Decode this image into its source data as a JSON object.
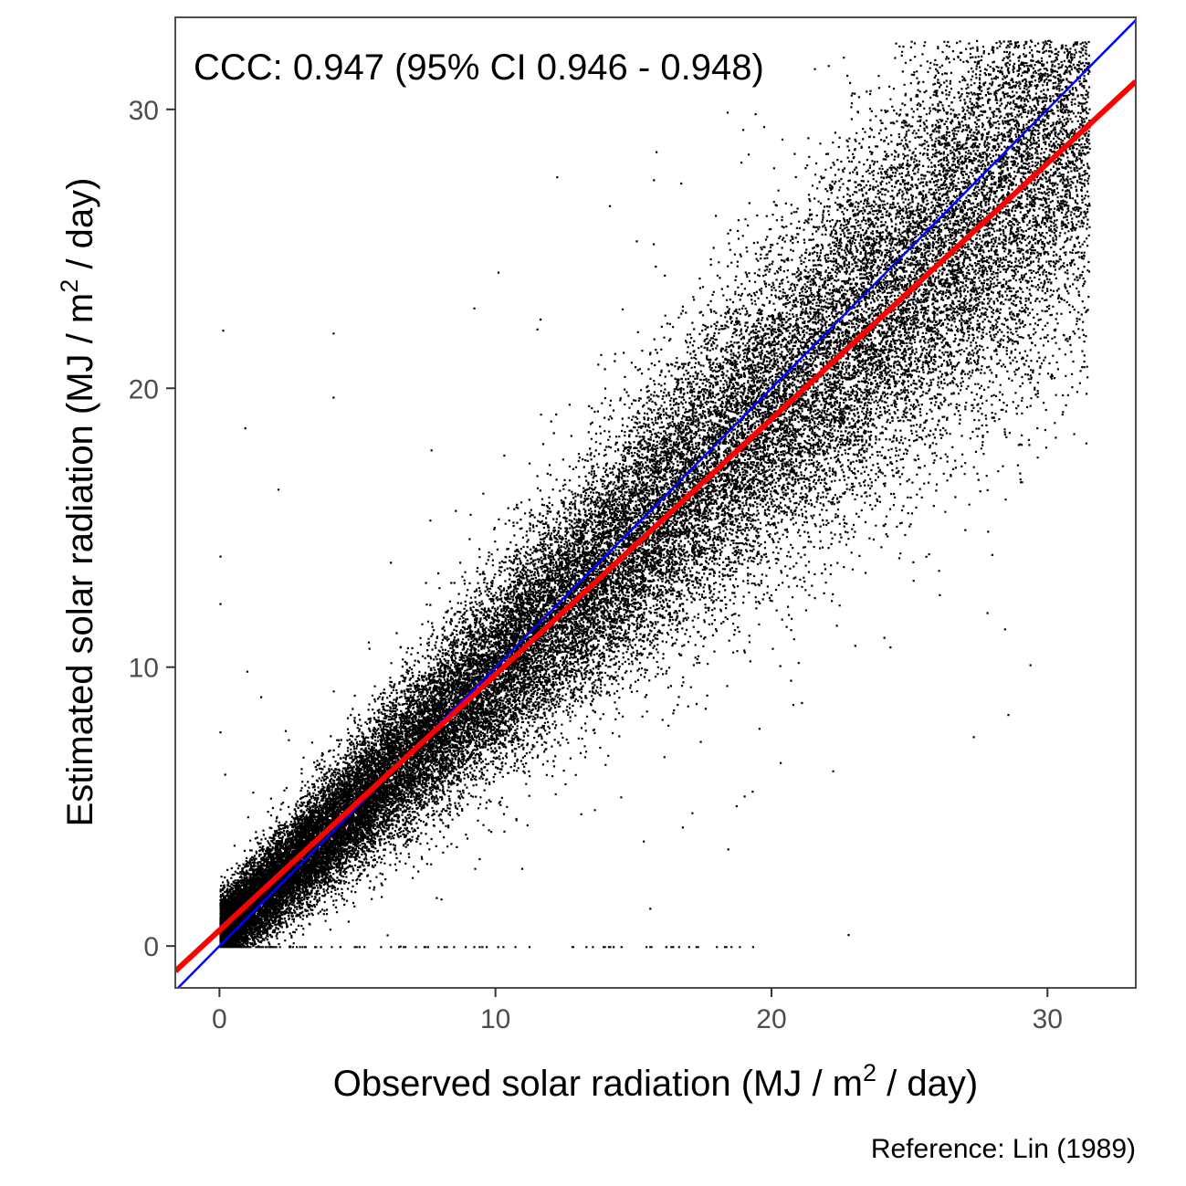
{
  "chart_data": {
    "type": "scatter",
    "annotation": "CCC: 0.947 (95% CI 0.946 - 0.948)",
    "xlabel": {
      "main": "Observed solar radiation (MJ / m",
      "sup": "2",
      "tail": " / day)"
    },
    "ylabel": {
      "main": "Estimated solar radiation (MJ / m",
      "sup": "2",
      "tail": " / day)"
    },
    "caption": "Reference: Lin (1989)",
    "xlim": [
      -1.6,
      33.2
    ],
    "ylim": [
      -1.5,
      33.3
    ],
    "x_ticks": [
      0,
      10,
      20,
      30
    ],
    "y_ticks": [
      0,
      10,
      20,
      30
    ],
    "x_tick_labels": [
      "0",
      "10",
      "20",
      "30"
    ],
    "y_tick_labels": [
      "0",
      "10",
      "20",
      "30"
    ],
    "grid": false,
    "lines": [
      {
        "role": "identity",
        "color": "#0000ff",
        "x": [
          -1.6,
          33.2
        ],
        "y": [
          -1.6,
          33.2
        ]
      },
      {
        "role": "reduced-major-axis",
        "color": "#ff0000",
        "x": [
          -1.6,
          33.2
        ],
        "y": [
          -0.9,
          31.0
        ]
      }
    ],
    "points": {
      "color": "#000000",
      "n_approx": 60000,
      "density_center_x": [
        0,
        31
      ],
      "density_center_y": [
        0.5,
        29
      ],
      "note_samples": [
        [
          0.1,
          22.1
        ],
        [
          0.9,
          18.6
        ],
        [
          0.0,
          14.0
        ],
        [
          0.0,
          12.3
        ],
        [
          2.1,
          16.4
        ],
        [
          0.0,
          7.7
        ],
        [
          4.1,
          19.7
        ],
        [
          4.1,
          22.0
        ],
        [
          9.2,
          22.9
        ],
        [
          11.6,
          22.5
        ],
        [
          12.2,
          27.6
        ],
        [
          15.7,
          25.2
        ],
        [
          15.8,
          28.5
        ],
        [
          19.7,
          29.4
        ],
        [
          21.3,
          29.0
        ],
        [
          23.6,
          29.3
        ],
        [
          24.7,
          32.1
        ],
        [
          25.9,
          31.8
        ],
        [
          30.3,
          31.9
        ],
        [
          31.3,
          24.9
        ],
        [
          23.0,
          10.8
        ],
        [
          21.2,
          12.8
        ],
        [
          20.3,
          6.6
        ],
        [
          22.2,
          6.3
        ],
        [
          18.4,
          3.5
        ],
        [
          17.1,
          4.8
        ],
        [
          13.2,
          7.2
        ],
        [
          11.2,
          0.0
        ],
        [
          19.3,
          0.0
        ],
        [
          8.2,
          0.0
        ]
      ]
    }
  }
}
